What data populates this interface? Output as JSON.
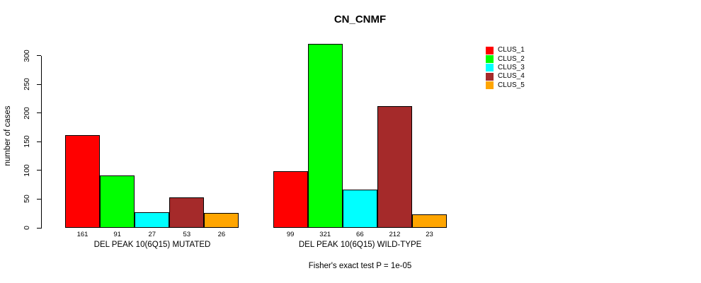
{
  "chart_data": {
    "type": "bar",
    "title": "CN_CNMF",
    "xlabel": "",
    "ylabel": "number of cases",
    "ylim": [
      0,
      300
    ],
    "ytick_step": 50,
    "yticks": [
      0,
      50,
      100,
      150,
      200,
      250,
      300
    ],
    "grid": false,
    "legend_position": "right",
    "bar_value_labels_shown": true,
    "categories": [
      "DEL PEAK 10(6Q15) MUTATED",
      "DEL PEAK 10(6Q15) WILD-TYPE"
    ],
    "series": [
      {
        "name": "CLUS_1",
        "color": "#FF0000",
        "values": [
          161,
          99
        ]
      },
      {
        "name": "CLUS_2",
        "color": "#00FF00",
        "values": [
          91,
          321
        ]
      },
      {
        "name": "CLUS_3",
        "color": "#00FFFF",
        "values": [
          27,
          66
        ]
      },
      {
        "name": "CLUS_4",
        "color": "#A52A2A",
        "values": [
          53,
          212
        ]
      },
      {
        "name": "CLUS_5",
        "color": "#FFA500",
        "values": [
          26,
          23
        ]
      }
    ],
    "footnote": "Fisher's exact test P = 1e-05"
  },
  "colors": {
    "background": "#FFFFFF",
    "axis": "#000000",
    "text": "#000000"
  }
}
